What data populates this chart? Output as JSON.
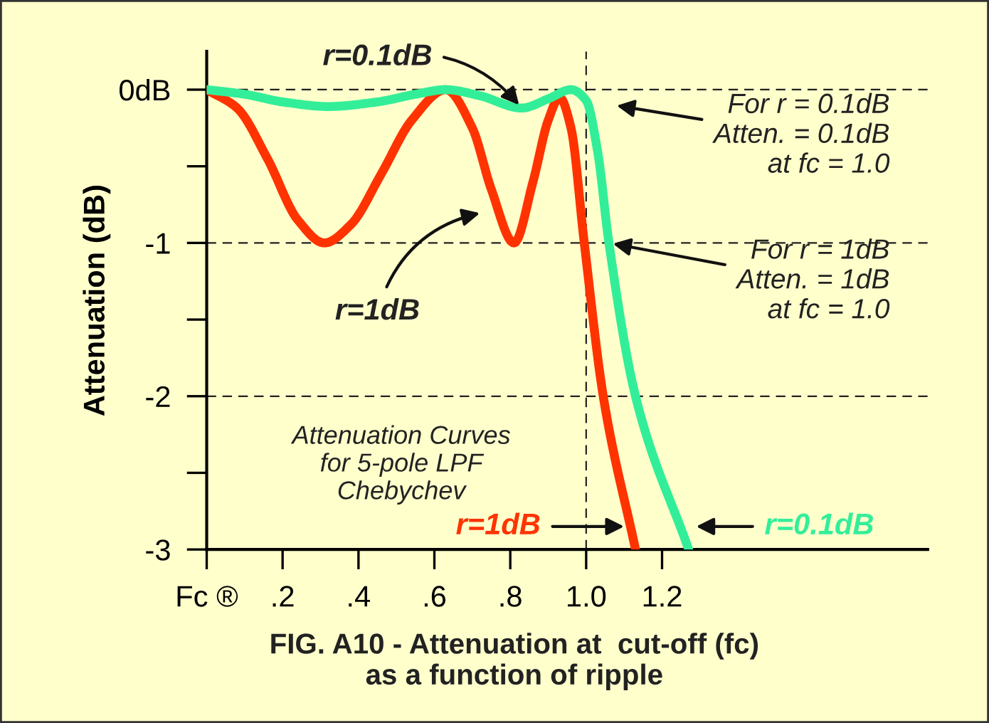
{
  "chart_data": {
    "type": "line",
    "title": "FIG. A10 - Attenuation at  cut-off (fc)\nas a function of ripple",
    "ylabel": "Attenuation (dB)",
    "series": [
      {
        "name": "r=1dB",
        "color": "#ff3300",
        "x": [
          0,
          0.08,
          0.16,
          0.24,
          0.31,
          0.38,
          0.46,
          0.54,
          0.63,
          0.7,
          0.75,
          0.81,
          0.86,
          0.9,
          0.93,
          0.96,
          0.995,
          1.045,
          1.13
        ],
        "values": [
          0,
          -0.12,
          -0.45,
          -0.85,
          -1.0,
          -0.88,
          -0.55,
          -0.2,
          0,
          -0.25,
          -0.65,
          -1.0,
          -0.6,
          -0.2,
          -0.05,
          -0.25,
          -1.0,
          -2.0,
          -3.0
        ]
      },
      {
        "name": "r=0.1dB",
        "color": "#33ee99",
        "x": [
          0,
          0.1,
          0.2,
          0.32,
          0.45,
          0.55,
          0.63,
          0.72,
          0.83,
          0.9,
          0.96,
          1.0,
          1.03,
          1.06,
          1.13,
          1.27
        ],
        "values": [
          0,
          -0.03,
          -0.08,
          -0.11,
          -0.08,
          -0.03,
          0,
          -0.04,
          -0.12,
          -0.06,
          0,
          -0.07,
          -0.4,
          -1.0,
          -2.0,
          -3.0
        ]
      }
    ],
    "xlim": [
      0,
      1.9
    ],
    "ylim": [
      -3,
      0.25
    ],
    "xticks": [
      {
        "value": 0,
        "label": "Fc ®"
      },
      {
        "value": 0.2,
        "label": ".2"
      },
      {
        "value": 0.4,
        "label": ".4"
      },
      {
        "value": 0.6,
        "label": ".6"
      },
      {
        "value": 0.8,
        "label": ".8"
      },
      {
        "value": 1.0,
        "label": "1.0"
      },
      {
        "value": 1.2,
        "label": "1.2"
      }
    ],
    "yticks": [
      {
        "value": 0,
        "label": "0dB"
      },
      {
        "value": -0.5,
        "label": null
      },
      -1,
      {
        "value": -1.5,
        "label": null
      },
      -2,
      {
        "value": -2.5,
        "label": null
      },
      -3
    ],
    "ref_lines": [
      {
        "axis": "y",
        "value": 0,
        "line_style": "dashed",
        "color": "#222222"
      },
      {
        "axis": "y",
        "value": -1,
        "line_style": "dashed",
        "color": "#222222"
      },
      {
        "axis": "y",
        "value": -2,
        "line_style": "dashed",
        "color": "#222222"
      },
      {
        "axis": "x",
        "value": 1.0,
        "line_style": "dashed",
        "color": "#222222"
      }
    ],
    "annotations": [
      {
        "text": "r=0.1dB",
        "x": 0.83,
        "y": -0.12
      },
      "r=1dB",
      "For r = 0.1dB\nAtten. = 0.1dB\nat fc = 1.0",
      {
        "text": "For r = 1dB\nAtten. = 1dB\n at fc = 1.0",
        "x": 1.06,
        "y": -1.0
      },
      "Attenuation Curves\nfor 5-pole LPF\nChebychev"
    ],
    "grid": false,
    "legend": false,
    "marker": "none",
    "line_style": "solid"
  }
}
